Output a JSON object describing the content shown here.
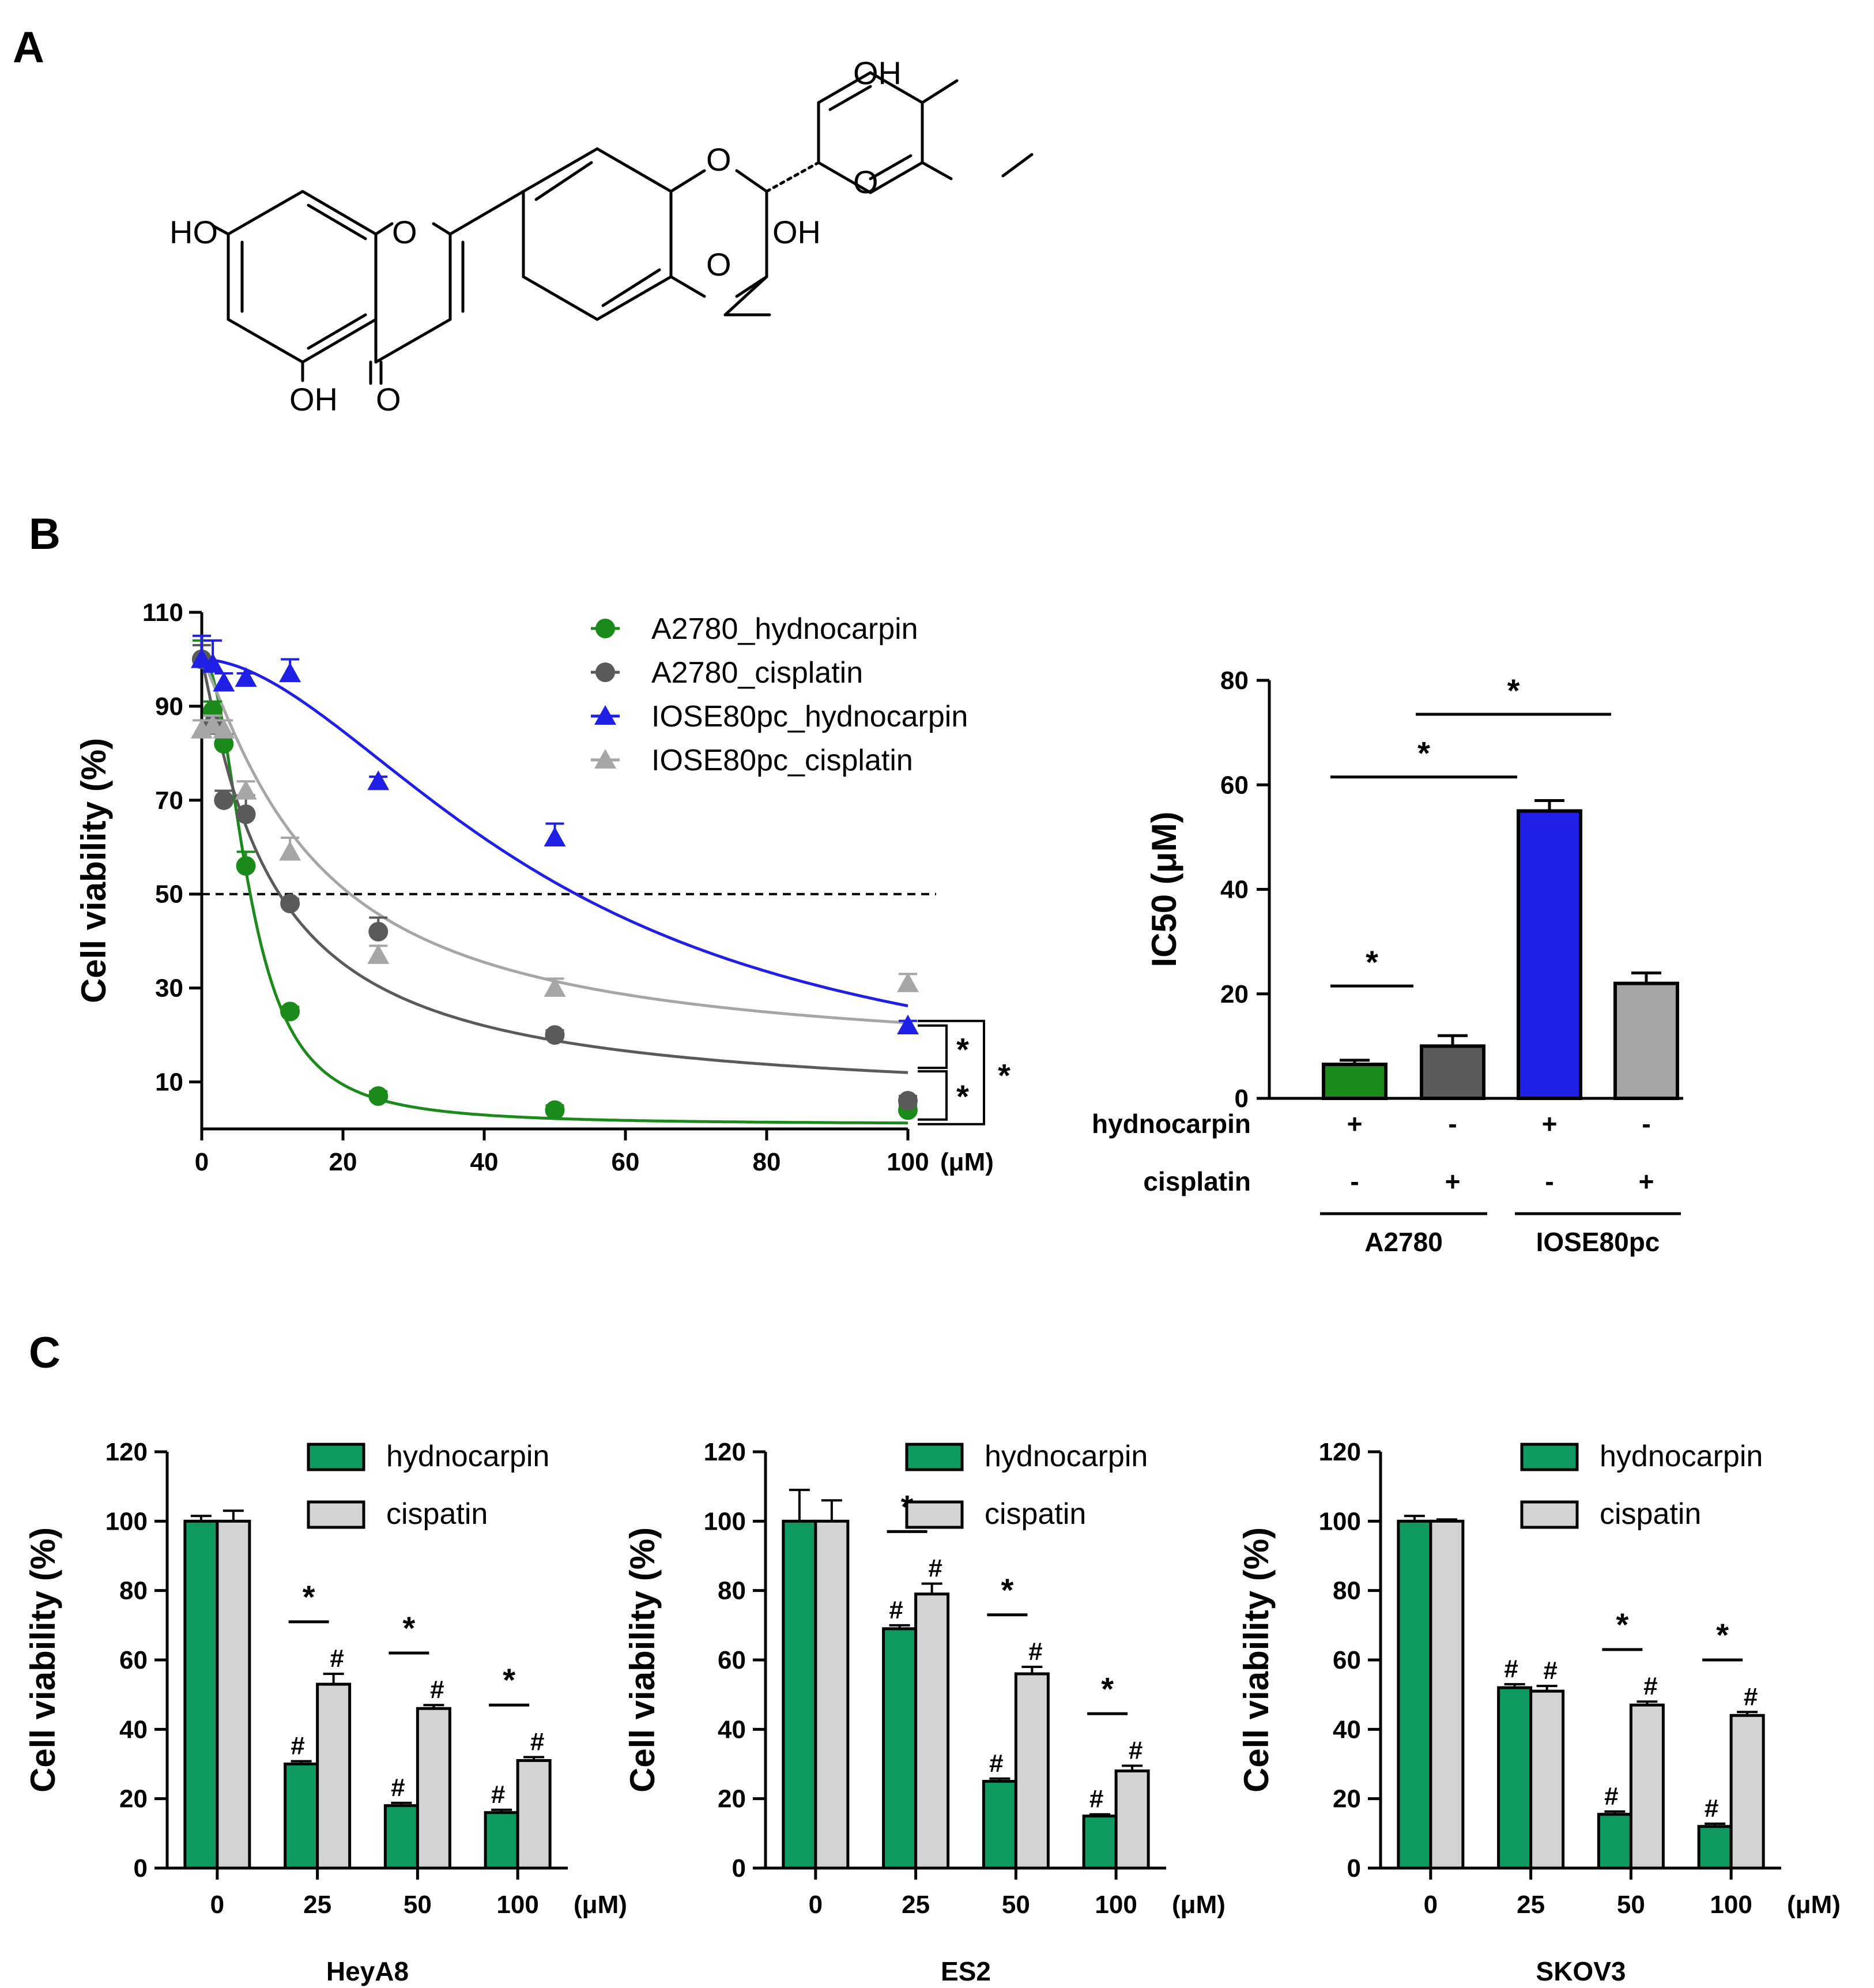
{
  "panels": {
    "a": "A",
    "b": "B",
    "c": "C"
  },
  "structure": {
    "labels": [
      "OH",
      "O",
      "O",
      "O",
      "HO",
      "O",
      "OH",
      "OH",
      "O"
    ]
  },
  "colors": {
    "green_curve": "#1a8a1a",
    "dark_gray": "#5a5a5a",
    "blue": "#1f1fe6",
    "light_gray": "#a6a6a6",
    "bar_green": "#0f9a5f",
    "bar_lightgray": "#d3d3d3"
  },
  "chart_data": [
    {
      "id": "B-left",
      "type": "scatter",
      "ylabel": "Cell viability (%)",
      "unit_label": "(μM)",
      "xlim": [
        0,
        100
      ],
      "ylim": [
        0,
        110
      ],
      "xticks": [
        "0",
        "20",
        "40",
        "60",
        "80",
        "100"
      ],
      "yticks": [
        "10",
        "30",
        "50",
        "70",
        "90",
        "110"
      ],
      "reference_line": 50,
      "series": [
        {
          "name": "A2780_hydnocarpin",
          "marker": "circle",
          "color": "#1a8a1a",
          "x": [
            0,
            1.56,
            3.125,
            6.25,
            12.5,
            25,
            50,
            100
          ],
          "y": [
            100,
            89,
            82,
            56,
            25,
            7,
            4,
            4
          ],
          "err": [
            4,
            2,
            2,
            3,
            1,
            1,
            1,
            1
          ],
          "fit": {
            "top": 100,
            "bottom": 1,
            "ic50": 6.8,
            "hill": 2.2
          }
        },
        {
          "name": "A2780_cisplatin",
          "marker": "circle",
          "color": "#5a5a5a",
          "x": [
            0,
            1.56,
            3.125,
            6.25,
            12.5,
            25,
            50,
            100
          ],
          "y": [
            100,
            86,
            70,
            67,
            48,
            42,
            20,
            6
          ],
          "err": [
            3,
            2,
            2,
            4,
            1,
            3,
            1,
            1
          ],
          "fit": {
            "top": 100,
            "bottom": 5,
            "ic50": 10,
            "hill": 1.1
          }
        },
        {
          "name": "IOSE80pc_hydnocarpin",
          "marker": "triangle",
          "color": "#1f1fe6",
          "x": [
            0,
            1.56,
            3.125,
            6.25,
            12.5,
            25,
            50,
            100
          ],
          "y": [
            100,
            99,
            95,
            96,
            97,
            74,
            62,
            22
          ],
          "err": [
            5,
            5,
            2,
            1,
            3,
            1,
            3,
            1
          ],
          "fit": {
            "top": 100,
            "bottom": 5,
            "ic50": 50,
            "hill": 1.8
          }
        },
        {
          "name": "IOSE80pc_cisplatin",
          "marker": "triangle",
          "color": "#a6a6a6",
          "x": [
            0,
            1.56,
            3.125,
            6.25,
            12.5,
            25,
            50,
            100
          ],
          "y": [
            85,
            86,
            85,
            72,
            59,
            37,
            30,
            31
          ],
          "err": [
            2,
            2,
            2,
            2,
            3,
            2,
            2,
            2
          ],
          "fit": {
            "top": 100,
            "bottom": 14,
            "ic50": 16,
            "hill": 1.2
          }
        }
      ],
      "significance": [
        "*",
        "*",
        "*"
      ]
    },
    {
      "id": "B-right",
      "type": "bar",
      "ylabel": "IC50 (μM)",
      "ylim": [
        0,
        80
      ],
      "yticks": [
        "0",
        "20",
        "40",
        "60",
        "80"
      ],
      "values": [
        6.5,
        10,
        55,
        22
      ],
      "err": [
        0.8,
        2,
        2,
        2
      ],
      "colors": [
        "#1a8a1a",
        "#5a5a5a",
        "#1f1fe6",
        "#a6a6a6"
      ],
      "rows": [
        {
          "label": "hydnocarpin",
          "signs": [
            "+",
            "-",
            "+",
            "-"
          ]
        },
        {
          "label": "cisplatin",
          "signs": [
            "-",
            "+",
            "-",
            "+"
          ]
        }
      ],
      "groups": [
        "A2780",
        "IOSE80pc"
      ],
      "significance": [
        "*",
        "*",
        "*"
      ]
    },
    {
      "id": "C-HeyA8",
      "type": "bar",
      "title": "HeyA8",
      "ylabel": "Cell viability (%)",
      "unit_label": "(μM)",
      "ylim": [
        0,
        120
      ],
      "yticks": [
        "0",
        "20",
        "40",
        "60",
        "80",
        "100",
        "120"
      ],
      "categories": [
        "0",
        "25",
        "50",
        "100"
      ],
      "series": [
        {
          "name": "hydnocarpin",
          "color": "#0f9a5f",
          "values": [
            100,
            30,
            18,
            16
          ],
          "err": [
            1.5,
            0.8,
            0.8,
            0.8
          ]
        },
        {
          "name": "cispatin",
          "color": "#d3d3d3",
          "values": [
            100,
            53,
            46,
            31
          ],
          "err": [
            3,
            3,
            1,
            1
          ]
        }
      ],
      "hash_marks": [
        [
          null,
          "#",
          "#",
          "#"
        ],
        [
          null,
          "#",
          "#",
          "#"
        ]
      ],
      "stars": [
        null,
        "*",
        "*",
        "*"
      ]
    },
    {
      "id": "C-ES2",
      "type": "bar",
      "title": "ES2",
      "ylabel": "Cell viability (%)",
      "unit_label": "(μM)",
      "ylim": [
        0,
        120
      ],
      "yticks": [
        "0",
        "20",
        "40",
        "60",
        "80",
        "100",
        "120"
      ],
      "categories": [
        "0",
        "25",
        "50",
        "100"
      ],
      "series": [
        {
          "name": "hydnocarpin",
          "color": "#0f9a5f",
          "values": [
            100,
            69,
            25,
            15
          ],
          "err": [
            9,
            1,
            0.8,
            0.5
          ]
        },
        {
          "name": "cispatin",
          "color": "#d3d3d3",
          "values": [
            100,
            79,
            56,
            28
          ],
          "err": [
            6,
            3,
            2,
            1.5
          ]
        }
      ],
      "hash_marks": [
        [
          null,
          "#",
          "#",
          "#"
        ],
        [
          null,
          "#",
          "#",
          "#"
        ]
      ],
      "stars": [
        null,
        "*",
        "*",
        "*"
      ]
    },
    {
      "id": "C-SKOV3",
      "type": "bar",
      "title": "SKOV3",
      "ylabel": "Cell viability (%)",
      "unit_label": "(μM)",
      "ylim": [
        0,
        120
      ],
      "yticks": [
        "0",
        "20",
        "40",
        "60",
        "80",
        "100",
        "120"
      ],
      "categories": [
        "0",
        "25",
        "50",
        "100"
      ],
      "series": [
        {
          "name": "hydnocarpin",
          "color": "#0f9a5f",
          "values": [
            100,
            52,
            15.5,
            12
          ],
          "err": [
            1.5,
            1,
            0.8,
            0.8
          ]
        },
        {
          "name": "cispatin",
          "color": "#d3d3d3",
          "values": [
            100,
            51,
            47,
            44
          ],
          "err": [
            0.5,
            1.5,
            1,
            1
          ]
        }
      ],
      "hash_marks": [
        [
          null,
          "#",
          "#",
          "#"
        ],
        [
          null,
          "#",
          "#",
          "#"
        ]
      ],
      "stars": [
        null,
        null,
        "*",
        "*"
      ]
    }
  ]
}
